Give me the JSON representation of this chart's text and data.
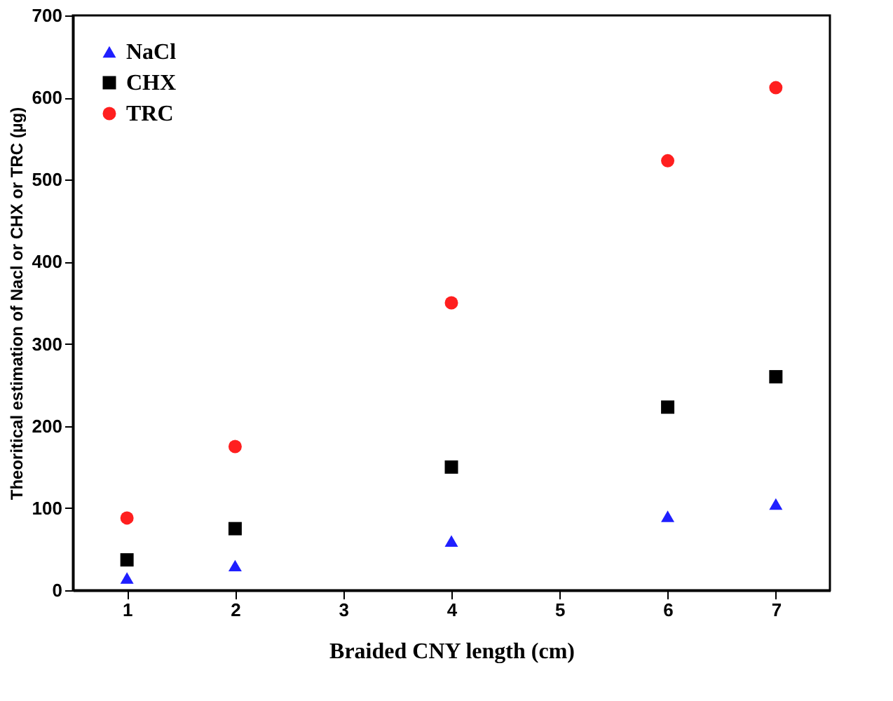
{
  "chart_data": {
    "type": "scatter",
    "xlabel": "Braided CNY length (cm)",
    "ylabel": "Theoritical estimation of  Nacl or CHX or TRC (µg)",
    "x": [
      1,
      2,
      4,
      6,
      7
    ],
    "series": [
      {
        "name": "NaCl",
        "color": "#1f1fff",
        "marker": "triangle",
        "values": [
          15,
          30,
          60,
          90,
          105
        ]
      },
      {
        "name": "CHX",
        "color": "#000000",
        "marker": "square",
        "values": [
          37,
          75,
          150,
          223,
          260
        ]
      },
      {
        "name": "TRC",
        "color": "#ff1f1f",
        "marker": "circle",
        "values": [
          88,
          175,
          350,
          523,
          612
        ]
      }
    ],
    "xlim": [
      0.5,
      7.5
    ],
    "xticks": [
      1,
      2,
      3,
      4,
      5,
      6,
      7
    ],
    "ylim": [
      0,
      700
    ],
    "yticks": [
      0,
      100,
      200,
      300,
      400,
      500,
      600,
      700
    ],
    "grid": false,
    "legend": "top left"
  }
}
